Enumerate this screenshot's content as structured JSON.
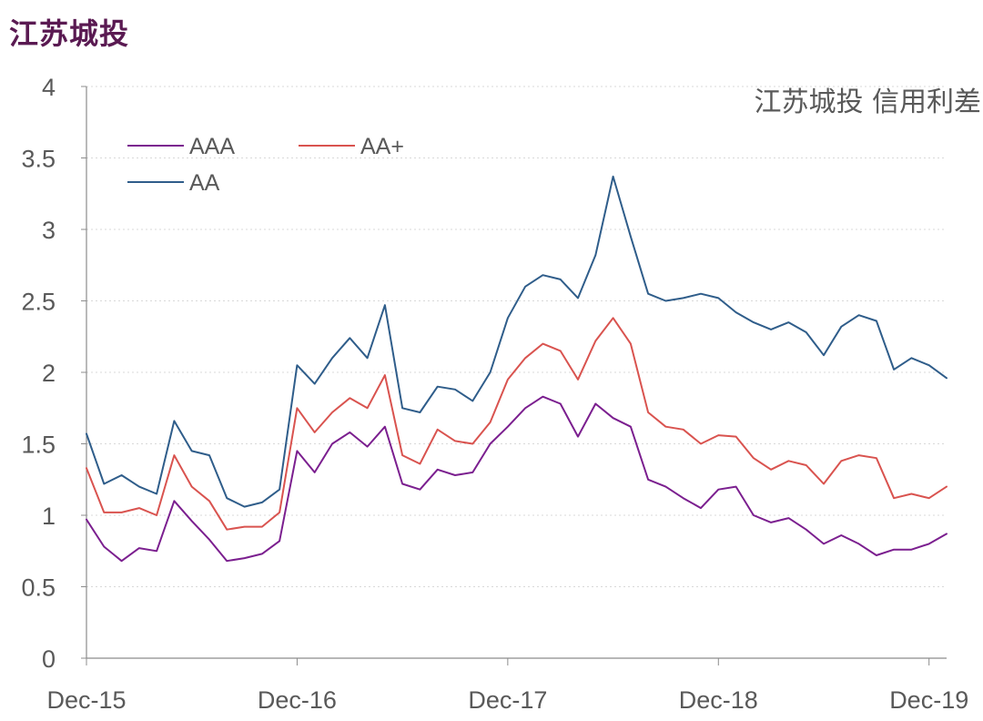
{
  "header": {
    "title": "江苏城投"
  },
  "chart_data": {
    "type": "line",
    "title": "江苏城投 信用利差",
    "xlabel": "",
    "ylabel": "",
    "ylim": [
      0,
      4
    ],
    "yticks": [
      "0",
      "0.5",
      "1",
      "1.5",
      "2",
      "2.5",
      "3",
      "3.5",
      "4"
    ],
    "x_ticks": [
      "Dec-15",
      "Dec-16",
      "Dec-17",
      "Dec-18",
      "Dec-19"
    ],
    "x_range": [
      "2015-12",
      "2020-01"
    ],
    "grid": true,
    "legend_position": "top-left",
    "series": [
      {
        "name": "AAA",
        "color": "#7b1f8f",
        "points": [
          [
            "2015-12",
            0.97
          ],
          [
            "2016-01",
            0.78
          ],
          [
            "2016-02",
            0.68
          ],
          [
            "2016-03",
            0.77
          ],
          [
            "2016-04",
            0.75
          ],
          [
            "2016-05",
            1.1
          ],
          [
            "2016-06",
            0.96
          ],
          [
            "2016-07",
            0.83
          ],
          [
            "2016-08",
            0.68
          ],
          [
            "2016-09",
            0.7
          ],
          [
            "2016-10",
            0.73
          ],
          [
            "2016-11",
            0.82
          ],
          [
            "2016-12",
            1.45
          ],
          [
            "2017-01",
            1.3
          ],
          [
            "2017-02",
            1.5
          ],
          [
            "2017-03",
            1.58
          ],
          [
            "2017-04",
            1.48
          ],
          [
            "2017-05",
            1.62
          ],
          [
            "2017-06",
            1.22
          ],
          [
            "2017-07",
            1.18
          ],
          [
            "2017-08",
            1.32
          ],
          [
            "2017-09",
            1.28
          ],
          [
            "2017-10",
            1.3
          ],
          [
            "2017-11",
            1.5
          ],
          [
            "2017-12",
            1.62
          ],
          [
            "2018-01",
            1.75
          ],
          [
            "2018-02",
            1.83
          ],
          [
            "2018-03",
            1.78
          ],
          [
            "2018-04",
            1.55
          ],
          [
            "2018-05",
            1.78
          ],
          [
            "2018-06",
            1.68
          ],
          [
            "2018-07",
            1.62
          ],
          [
            "2018-08",
            1.25
          ],
          [
            "2018-09",
            1.2
          ],
          [
            "2018-10",
            1.12
          ],
          [
            "2018-11",
            1.05
          ],
          [
            "2018-12",
            1.18
          ],
          [
            "2019-01",
            1.2
          ],
          [
            "2019-02",
            1.0
          ],
          [
            "2019-03",
            0.95
          ],
          [
            "2019-04",
            0.98
          ],
          [
            "2019-05",
            0.9
          ],
          [
            "2019-06",
            0.8
          ],
          [
            "2019-07",
            0.86
          ],
          [
            "2019-08",
            0.8
          ],
          [
            "2019-09",
            0.72
          ],
          [
            "2019-10",
            0.76
          ],
          [
            "2019-11",
            0.76
          ],
          [
            "2019-12",
            0.8
          ],
          [
            "2020-01",
            0.87
          ]
        ]
      },
      {
        "name": "AA+",
        "color": "#d9534f",
        "points": [
          [
            "2015-12",
            1.33
          ],
          [
            "2016-01",
            1.02
          ],
          [
            "2016-02",
            1.02
          ],
          [
            "2016-03",
            1.05
          ],
          [
            "2016-04",
            1.0
          ],
          [
            "2016-05",
            1.42
          ],
          [
            "2016-06",
            1.2
          ],
          [
            "2016-07",
            1.1
          ],
          [
            "2016-08",
            0.9
          ],
          [
            "2016-09",
            0.92
          ],
          [
            "2016-10",
            0.92
          ],
          [
            "2016-11",
            1.02
          ],
          [
            "2016-12",
            1.75
          ],
          [
            "2017-01",
            1.58
          ],
          [
            "2017-02",
            1.72
          ],
          [
            "2017-03",
            1.82
          ],
          [
            "2017-04",
            1.75
          ],
          [
            "2017-05",
            1.98
          ],
          [
            "2017-06",
            1.42
          ],
          [
            "2017-07",
            1.36
          ],
          [
            "2017-08",
            1.6
          ],
          [
            "2017-09",
            1.52
          ],
          [
            "2017-10",
            1.5
          ],
          [
            "2017-11",
            1.65
          ],
          [
            "2017-12",
            1.95
          ],
          [
            "2018-01",
            2.1
          ],
          [
            "2018-02",
            2.2
          ],
          [
            "2018-03",
            2.15
          ],
          [
            "2018-04",
            1.95
          ],
          [
            "2018-05",
            2.22
          ],
          [
            "2018-06",
            2.38
          ],
          [
            "2018-07",
            2.2
          ],
          [
            "2018-08",
            1.72
          ],
          [
            "2018-09",
            1.62
          ],
          [
            "2018-10",
            1.6
          ],
          [
            "2018-11",
            1.5
          ],
          [
            "2018-12",
            1.56
          ],
          [
            "2019-01",
            1.55
          ],
          [
            "2019-02",
            1.4
          ],
          [
            "2019-03",
            1.32
          ],
          [
            "2019-04",
            1.38
          ],
          [
            "2019-05",
            1.35
          ],
          [
            "2019-06",
            1.22
          ],
          [
            "2019-07",
            1.38
          ],
          [
            "2019-08",
            1.42
          ],
          [
            "2019-09",
            1.4
          ],
          [
            "2019-10",
            1.12
          ],
          [
            "2019-11",
            1.15
          ],
          [
            "2019-12",
            1.12
          ],
          [
            "2020-01",
            1.2
          ]
        ]
      },
      {
        "name": "AA",
        "color": "#2f5d8a",
        "points": [
          [
            "2015-12",
            1.57
          ],
          [
            "2016-01",
            1.22
          ],
          [
            "2016-02",
            1.28
          ],
          [
            "2016-03",
            1.2
          ],
          [
            "2016-04",
            1.15
          ],
          [
            "2016-05",
            1.66
          ],
          [
            "2016-06",
            1.45
          ],
          [
            "2016-07",
            1.42
          ],
          [
            "2016-08",
            1.12
          ],
          [
            "2016-09",
            1.06
          ],
          [
            "2016-10",
            1.09
          ],
          [
            "2016-11",
            1.18
          ],
          [
            "2016-12",
            2.05
          ],
          [
            "2017-01",
            1.92
          ],
          [
            "2017-02",
            2.1
          ],
          [
            "2017-03",
            2.24
          ],
          [
            "2017-04",
            2.1
          ],
          [
            "2017-05",
            2.47
          ],
          [
            "2017-06",
            1.75
          ],
          [
            "2017-07",
            1.72
          ],
          [
            "2017-08",
            1.9
          ],
          [
            "2017-09",
            1.88
          ],
          [
            "2017-10",
            1.8
          ],
          [
            "2017-11",
            2.0
          ],
          [
            "2017-12",
            2.38
          ],
          [
            "2018-01",
            2.6
          ],
          [
            "2018-02",
            2.68
          ],
          [
            "2018-03",
            2.65
          ],
          [
            "2018-04",
            2.52
          ],
          [
            "2018-05",
            2.82
          ],
          [
            "2018-06",
            3.37
          ],
          [
            "2018-07",
            2.95
          ],
          [
            "2018-08",
            2.55
          ],
          [
            "2018-09",
            2.5
          ],
          [
            "2018-10",
            2.52
          ],
          [
            "2018-11",
            2.55
          ],
          [
            "2018-12",
            2.52
          ],
          [
            "2019-01",
            2.42
          ],
          [
            "2019-02",
            2.35
          ],
          [
            "2019-03",
            2.3
          ],
          [
            "2019-04",
            2.35
          ],
          [
            "2019-05",
            2.28
          ],
          [
            "2019-06",
            2.12
          ],
          [
            "2019-07",
            2.32
          ],
          [
            "2019-08",
            2.4
          ],
          [
            "2019-09",
            2.36
          ],
          [
            "2019-10",
            2.02
          ],
          [
            "2019-11",
            2.1
          ],
          [
            "2019-12",
            2.05
          ],
          [
            "2020-01",
            1.96
          ]
        ]
      }
    ]
  }
}
